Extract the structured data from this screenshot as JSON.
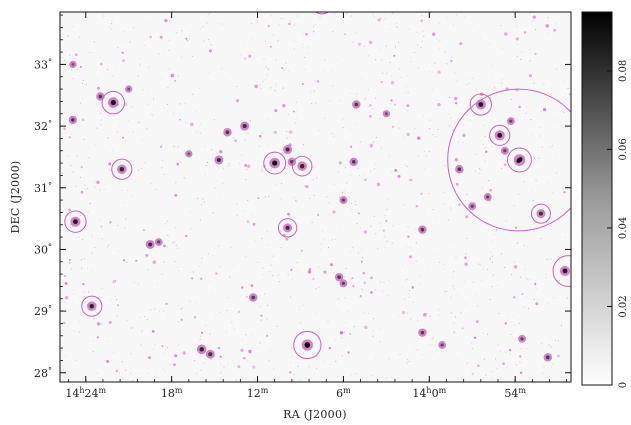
{
  "chart_data": {
    "type": "sky-map",
    "xlabel": "RA (J2000)",
    "ylabel": "DEC (J2000)",
    "x_ticks": [
      {
        "ra_h": 14.4,
        "label": "14h24m",
        "parts": [
          "14",
          "h",
          "24",
          "m"
        ]
      },
      {
        "ra_h": 14.3,
        "label": "18m",
        "parts": [
          "",
          "",
          "18",
          "m"
        ]
      },
      {
        "ra_h": 14.2,
        "label": "12m",
        "parts": [
          "",
          "",
          "12",
          "m"
        ]
      },
      {
        "ra_h": 14.1,
        "label": "6m",
        "parts": [
          "",
          "",
          "6",
          "m"
        ]
      },
      {
        "ra_h": 14.0,
        "label": "14h0m",
        "parts": [
          "14",
          "h",
          "0",
          "m"
        ]
      },
      {
        "ra_h": 13.9,
        "label": "54m",
        "parts": [
          "",
          "",
          "54",
          "m"
        ]
      }
    ],
    "y_ticks": [
      {
        "dec": 28,
        "label": "28°",
        "num": "28"
      },
      {
        "dec": 29,
        "label": "29°",
        "num": "29"
      },
      {
        "dec": 30,
        "label": "30°",
        "num": "30"
      },
      {
        "dec": 31,
        "label": "31°",
        "num": "31"
      },
      {
        "dec": 32,
        "label": "32°",
        "num": "32"
      },
      {
        "dec": 33,
        "label": "33°",
        "num": "33"
      }
    ],
    "xlim_ra_h": [
      14.43,
      13.835
    ],
    "ylim_dec": [
      27.85,
      33.85
    ],
    "colorbar": {
      "range": [
        0,
        0.095
      ],
      "ticks": [
        {
          "value": 0,
          "label": "0"
        },
        {
          "value": 0.02,
          "label": "0.02"
        },
        {
          "value": 0.04,
          "label": "0.04"
        },
        {
          "value": 0.06,
          "label": "0.06"
        },
        {
          "value": 0.08,
          "label": "0.08"
        }
      ]
    },
    "marker_color": "#d060c0",
    "sources": [
      {
        "ra": 14.415,
        "dec": 33.0,
        "s": 0.02
      },
      {
        "ra": 14.415,
        "dec": 32.1,
        "s": 0.04
      },
      {
        "ra": 14.412,
        "dec": 30.45,
        "s": 0.07,
        "circle": 1.4
      },
      {
        "ra": 14.393,
        "dec": 29.08,
        "s": 0.06,
        "circle": 1.3
      },
      {
        "ra": 14.383,
        "dec": 32.48,
        "s": 0.04
      },
      {
        "ra": 14.368,
        "dec": 32.38,
        "s": 0.08,
        "circle": 1.5
      },
      {
        "ra": 14.358,
        "dec": 31.3,
        "s": 0.06,
        "circle": 1.3
      },
      {
        "ra": 14.35,
        "dec": 32.6,
        "s": 0.02
      },
      {
        "ra": 14.325,
        "dec": 30.08,
        "s": 0.05
      },
      {
        "ra": 14.315,
        "dec": 30.12,
        "s": 0.03
      },
      {
        "ra": 14.28,
        "dec": 31.55,
        "s": 0.02
      },
      {
        "ra": 14.265,
        "dec": 28.38,
        "s": 0.06
      },
      {
        "ra": 14.255,
        "dec": 28.3,
        "s": 0.05
      },
      {
        "ra": 14.245,
        "dec": 31.45,
        "s": 0.05
      },
      {
        "ra": 14.235,
        "dec": 31.9,
        "s": 0.04
      },
      {
        "ra": 14.215,
        "dec": 32.0,
        "s": 0.05
      },
      {
        "ra": 14.205,
        "dec": 29.22,
        "s": 0.04
      },
      {
        "ra": 14.18,
        "dec": 31.4,
        "s": 0.08,
        "circle": 1.4
      },
      {
        "ra": 14.165,
        "dec": 30.35,
        "s": 0.05,
        "circle": 1.1
      },
      {
        "ra": 14.165,
        "dec": 31.62,
        "s": 0.05
      },
      {
        "ra": 14.16,
        "dec": 31.42,
        "s": 0.04
      },
      {
        "ra": 14.148,
        "dec": 31.35,
        "s": 0.06,
        "circle": 1.2
      },
      {
        "ra": 14.142,
        "dec": 28.45,
        "s": 0.09,
        "circle": 2.2
      },
      {
        "ra": 14.105,
        "dec": 29.55,
        "s": 0.04
      },
      {
        "ra": 14.1,
        "dec": 29.45,
        "s": 0.03
      },
      {
        "ra": 14.1,
        "dec": 30.8,
        "s": 0.03
      },
      {
        "ra": 14.088,
        "dec": 31.42,
        "s": 0.04
      },
      {
        "ra": 14.085,
        "dec": 32.35,
        "s": 0.04
      },
      {
        "ra": 14.05,
        "dec": 32.2,
        "s": 0.02
      },
      {
        "ra": 14.008,
        "dec": 30.32,
        "s": 0.04
      },
      {
        "ra": 14.008,
        "dec": 28.65,
        "s": 0.04
      },
      {
        "ra": 13.985,
        "dec": 28.45,
        "s": 0.03
      },
      {
        "ra": 13.965,
        "dec": 31.3,
        "s": 0.04
      },
      {
        "ra": 13.95,
        "dec": 30.7,
        "s": 0.03
      },
      {
        "ra": 13.94,
        "dec": 32.35,
        "s": 0.07,
        "circle": 1.4
      },
      {
        "ra": 13.932,
        "dec": 30.85,
        "s": 0.03
      },
      {
        "ra": 13.918,
        "dec": 31.85,
        "s": 0.07,
        "circle": 1.2
      },
      {
        "ra": 13.912,
        "dec": 31.6,
        "s": 0.03
      },
      {
        "ra": 13.905,
        "dec": 32.08,
        "s": 0.03
      },
      {
        "ra": 13.895,
        "dec": 31.45,
        "s": 0.095,
        "circle": 1.6,
        "big": 1
      },
      {
        "ra": 13.892,
        "dec": 28.55,
        "s": 0.03
      },
      {
        "ra": 13.87,
        "dec": 30.58,
        "s": 0.05,
        "circle": 1.2
      },
      {
        "ra": 13.862,
        "dec": 28.25,
        "s": 0.04
      },
      {
        "ra": 13.842,
        "dec": 29.65,
        "s": 0.07
      }
    ],
    "large_circles": [
      {
        "ra": 13.896,
        "dec": 31.45,
        "r_deg": 1.15
      },
      {
        "ra": 13.838,
        "dec": 29.65,
        "r_deg": 0.25
      },
      {
        "ra": 14.125,
        "dec": 34.0,
        "r_deg": 0.18
      }
    ]
  }
}
